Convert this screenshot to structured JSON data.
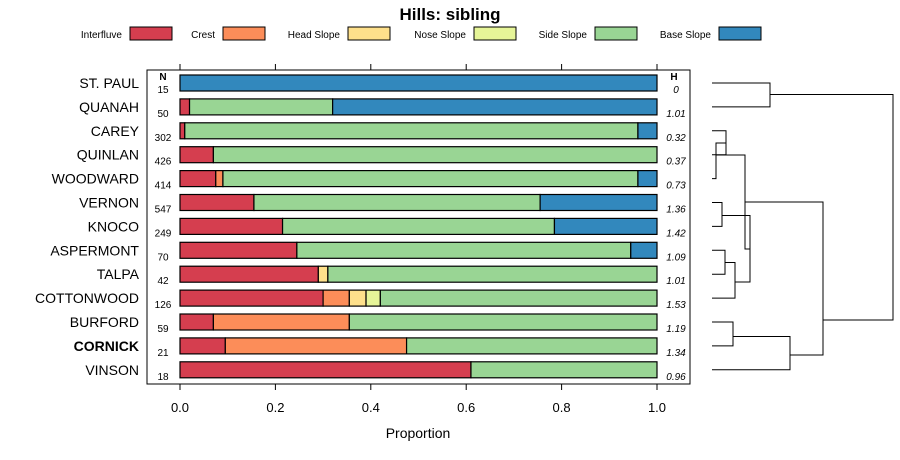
{
  "chart_data": {
    "type": "bar",
    "orientation": "horizontal",
    "stacked": true,
    "title": "Hills: sibling",
    "xlabel": "Proportion",
    "ylabel": "",
    "xlim": [
      0,
      1
    ],
    "xticks": [
      "0.0",
      "0.2",
      "0.4",
      "0.6",
      "0.8",
      "1.0"
    ],
    "n_header": "N",
    "h_header": "H",
    "legend_position": "top",
    "highlight": "CORNICK",
    "series": [
      {
        "name": "Interfluve",
        "color": "#d53e4f"
      },
      {
        "name": "Crest",
        "color": "#fc8d59"
      },
      {
        "name": "Head Slope",
        "color": "#fee08b"
      },
      {
        "name": "Nose Slope",
        "color": "#e6f598"
      },
      {
        "name": "Side Slope",
        "color": "#99d594"
      },
      {
        "name": "Base Slope",
        "color": "#3288bd"
      }
    ],
    "rows": [
      {
        "label": "ST. PAUL",
        "n": "15",
        "h": "0",
        "values": [
          0,
          0,
          0,
          0,
          0,
          1.0
        ]
      },
      {
        "label": "QUANAH",
        "n": "50",
        "h": "1.01",
        "values": [
          0.02,
          0,
          0,
          0,
          0.3,
          0.68
        ]
      },
      {
        "label": "CAREY",
        "n": "302",
        "h": "0.32",
        "values": [
          0.01,
          0,
          0,
          0,
          0.95,
          0.04
        ]
      },
      {
        "label": "QUINLAN",
        "n": "426",
        "h": "0.37",
        "values": [
          0.07,
          0,
          0,
          0,
          0.93,
          0
        ]
      },
      {
        "label": "WOODWARD",
        "n": "414",
        "h": "0.73",
        "values": [
          0.075,
          0.015,
          0,
          0,
          0.87,
          0.04
        ]
      },
      {
        "label": "VERNON",
        "n": "547",
        "h": "1.36",
        "values": [
          0.155,
          0,
          0,
          0,
          0.6,
          0.245
        ]
      },
      {
        "label": "KNOCO",
        "n": "249",
        "h": "1.42",
        "values": [
          0.215,
          0,
          0,
          0,
          0.57,
          0.215
        ]
      },
      {
        "label": "ASPERMONT",
        "n": "70",
        "h": "1.09",
        "values": [
          0.245,
          0,
          0,
          0,
          0.7,
          0.055
        ]
      },
      {
        "label": "TALPA",
        "n": "42",
        "h": "1.01",
        "values": [
          0.29,
          0,
          0.02,
          0,
          0.69,
          0
        ]
      },
      {
        "label": "COTTONWOOD",
        "n": "126",
        "h": "1.53",
        "values": [
          0.3,
          0.055,
          0.035,
          0.03,
          0.58,
          0
        ]
      },
      {
        "label": "BURFORD",
        "n": "59",
        "h": "1.19",
        "values": [
          0.07,
          0.285,
          0,
          0,
          0.645,
          0
        ]
      },
      {
        "label": "CORNICK",
        "n": "21",
        "h": "1.34",
        "values": [
          0.095,
          0.38,
          0,
          0,
          0.525,
          0
        ]
      },
      {
        "label": "VINSON",
        "n": "18",
        "h": "0.96",
        "values": [
          0.61,
          0,
          0,
          0,
          0.39,
          0
        ]
      }
    ]
  }
}
